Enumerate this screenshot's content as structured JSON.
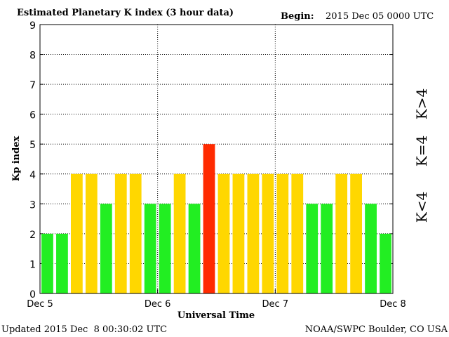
{
  "chart_data": {
    "type": "bar",
    "title": "Estimated Planetary K index (3 hour data)",
    "begin_label": "Begin:",
    "begin_value": "2015 Dec 05 0000 UTC",
    "y_label": "Kp index",
    "x_label": "Universal Time",
    "footer_left": "Updated 2015 Dec  8 00:30:02 UTC",
    "footer_right": "NOAA/SWPC Boulder, CO USA",
    "x": [
      0,
      3,
      6,
      9,
      12,
      15,
      18,
      21,
      24,
      27,
      30,
      33,
      36,
      39,
      42,
      45,
      48,
      51,
      54,
      57,
      60,
      63,
      66,
      69
    ],
    "values": [
      2,
      2,
      4,
      4,
      3,
      4,
      4,
      3,
      3,
      4,
      3,
      5,
      4,
      4,
      4,
      4,
      4,
      4,
      3,
      3,
      4,
      4,
      3,
      2
    ],
    "colors": [
      "#22ee22",
      "#22ee22",
      "#ffd700",
      "#ffd700",
      "#22ee22",
      "#ffd700",
      "#ffd700",
      "#22ee22",
      "#22ee22",
      "#ffd700",
      "#22ee22",
      "#ff2a00",
      "#ffd700",
      "#ffd700",
      "#ffd700",
      "#ffd700",
      "#ffd700",
      "#ffd700",
      "#22ee22",
      "#22ee22",
      "#ffd700",
      "#ffd700",
      "#22ee22",
      "#22ee22"
    ],
    "bar_width": 3,
    "xlim": [
      0,
      72
    ],
    "xticks": [
      {
        "value": 0,
        "label": "Dec 5"
      },
      {
        "value": 24,
        "label": "Dec 6"
      },
      {
        "value": 48,
        "label": "Dec 7"
      },
      {
        "value": 72,
        "label": "Dec 8"
      }
    ],
    "ylim": [
      0,
      9
    ],
    "yticks": [
      0,
      1,
      2,
      3,
      4,
      5,
      6,
      7,
      8,
      9
    ],
    "grid": true,
    "legend": [
      {
        "label": "K<4",
        "color": "#22ee22"
      },
      {
        "label": "K=4",
        "color": "#ffd700"
      },
      {
        "label": "K>4",
        "color": "#ff2a00"
      }
    ]
  }
}
